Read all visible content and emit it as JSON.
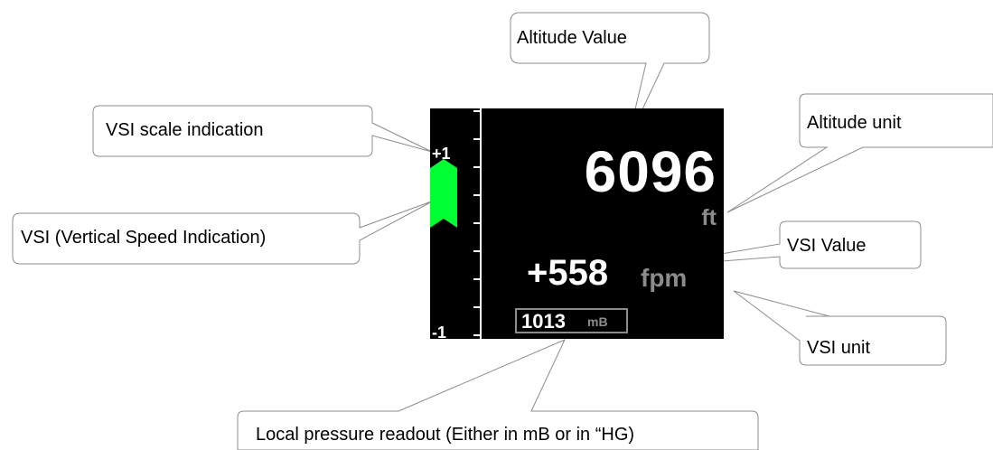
{
  "display": {
    "scale_top": "+1",
    "scale_bottom": "-1",
    "altitude_value": "6096",
    "altitude_unit": "ft",
    "vsi_value": "+558",
    "vsi_unit": "fpm",
    "pressure_value": "1013",
    "pressure_unit": "mB",
    "vsi_color": "#00ff33"
  },
  "callouts": {
    "altitude_value": "Altitude Value",
    "vsi_scale": "VSI scale indication",
    "altitude_unit": "Altitude unit",
    "vsi": "VSI (Vertical Speed Indication)",
    "vsi_value": "VSI Value",
    "vsi_unit": "VSI unit",
    "pressure": "Local pressure readout (Either in mB or in “HG)"
  }
}
